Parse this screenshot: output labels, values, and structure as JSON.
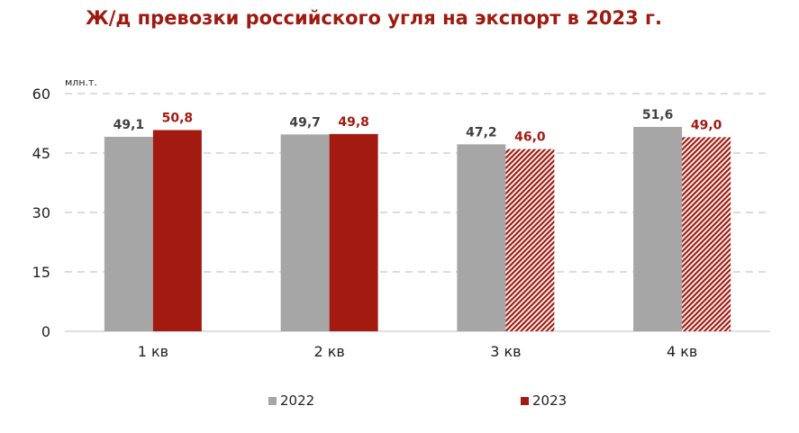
{
  "title": "Ж/д превозки российского угля на экспорт в 2023 г.",
  "chart_data": {
    "type": "bar",
    "title": "Ж/д превозки российского угля на экспорт в 2023 г.",
    "ylabel": "млн.т.",
    "xlabel": "",
    "ylim": [
      0,
      60
    ],
    "yticks": [
      0,
      15,
      30,
      45,
      60
    ],
    "grid": true,
    "legend_position": "bottom",
    "categories": [
      "1 кв",
      "2 кв",
      "3 кв",
      "4 кв"
    ],
    "series": [
      {
        "name": "2022",
        "color": "#a6a6a6",
        "values": [
          49.1,
          49.7,
          47.2,
          51.6
        ],
        "labels": [
          "49,1",
          "49,7",
          "47,2",
          "51,6"
        ],
        "label_color": "#404040",
        "hatched": [
          false,
          false,
          false,
          false
        ]
      },
      {
        "name": "2023",
        "color": "#a31a10",
        "values": [
          50.8,
          49.8,
          46.0,
          49.0
        ],
        "labels": [
          "50,8",
          "49,8",
          "46,0",
          "49,0"
        ],
        "label_color": "#a31a10",
        "hatched": [
          false,
          false,
          true,
          true
        ]
      }
    ]
  }
}
